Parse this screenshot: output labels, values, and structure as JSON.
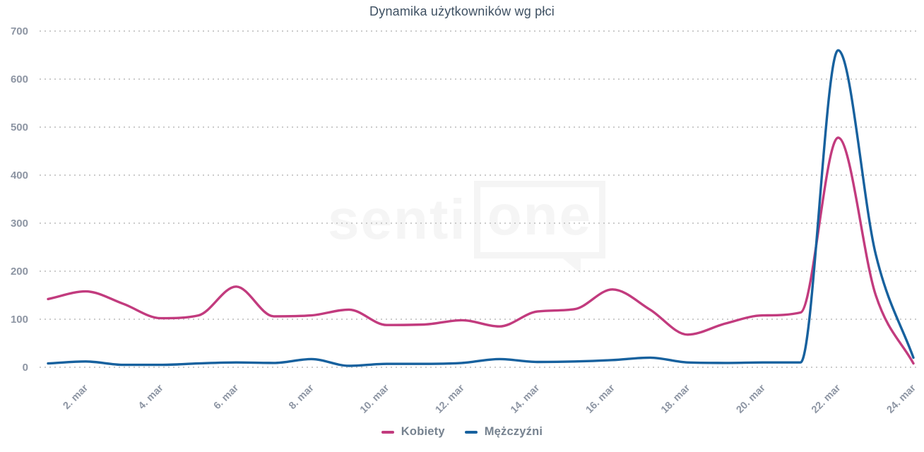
{
  "title": "Dynamika użytkowników wg płci",
  "watermark": {
    "part1": "senti",
    "part2": "one"
  },
  "colors": {
    "title": "#3e5062",
    "axis_labels": "#8d95a3",
    "legend_labels": "#76828f",
    "gridline": "#cbcbcb",
    "kobiety": "#c23b7e",
    "mezczyzni": "#17619e",
    "watermark": "#f5f5f5",
    "background": "#ffffff"
  },
  "chart_data": {
    "type": "line",
    "title": "Dynamika użytkowników wg płci",
    "categories": [
      "1. mar",
      "2. mar",
      "3. mar",
      "4. mar",
      "5. mar",
      "6. mar",
      "7. mar",
      "8. mar",
      "9. mar",
      "10. mar",
      "11. mar",
      "12. mar",
      "13. mar",
      "14. mar",
      "15. mar",
      "16. mar",
      "17. mar",
      "18. mar",
      "19. mar",
      "20. mar",
      "21. mar",
      "22. mar",
      "23. mar",
      "24. mar"
    ],
    "x_ticks_shown": [
      "2. mar",
      "4. mar",
      "6. mar",
      "8. mar",
      "10. mar",
      "12. mar",
      "14. mar",
      "16. mar",
      "18. mar",
      "20. mar",
      "22. mar",
      "24. mar"
    ],
    "series": [
      {
        "name": "Kobiety",
        "color": "#c23b7e",
        "values": [
          142,
          158,
          132,
          102,
          108,
          168,
          106,
          108,
          120,
          88,
          89,
          98,
          85,
          116,
          121,
          162,
          120,
          68,
          91,
          108,
          114,
          478,
          150,
          8
        ]
      },
      {
        "name": "Mężczyźni",
        "color": "#17619e",
        "values": [
          8,
          12,
          5,
          5,
          8,
          10,
          9,
          17,
          3,
          7,
          7,
          9,
          17,
          11,
          12,
          15,
          20,
          10,
          9,
          10,
          10,
          660,
          235,
          20
        ]
      }
    ],
    "ylim": [
      0,
      700
    ],
    "yticks": [
      0,
      100,
      200,
      300,
      400,
      500,
      600,
      700
    ],
    "grid": "dotted-horizontal",
    "legend_position": "bottom",
    "smoothing": "monotone-spline",
    "x_label_rotation_deg": -45
  }
}
